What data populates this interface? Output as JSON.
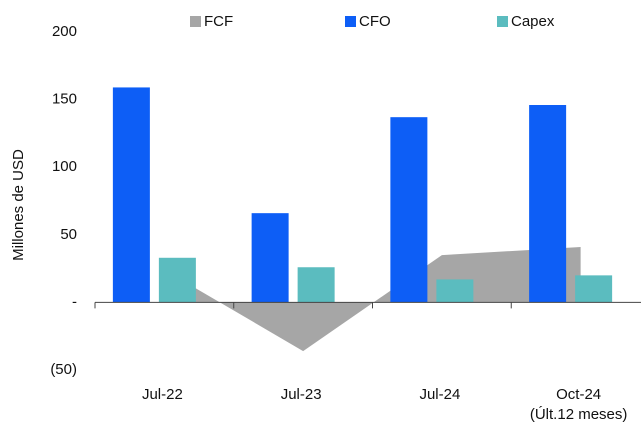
{
  "chart_data": {
    "type": "bar",
    "y_label": "Millones de USD",
    "categories": [
      "Jul-22",
      "Jul-23",
      "Jul-24",
      "Oct-24\n(Últ.12 meses)"
    ],
    "series": [
      {
        "name": "FCF",
        "color": "#a6a6a6",
        "kind": "area",
        "values": [
          24,
          -36,
          35,
          41
        ]
      },
      {
        "name": "CFO",
        "color": "#0d5ef6",
        "kind": "bar",
        "values": [
          159,
          66,
          137,
          146
        ]
      },
      {
        "name": "Capex",
        "color": "#5bbcbf",
        "kind": "bar",
        "values": [
          33,
          26,
          17,
          20
        ]
      }
    ],
    "ylim": [
      -50,
      200
    ],
    "yticks": [
      {
        "value": -50,
        "label": "(50)"
      },
      {
        "value": 0,
        "label": "-"
      },
      50,
      100,
      150,
      200
    ],
    "grid": false,
    "legend": "top"
  }
}
